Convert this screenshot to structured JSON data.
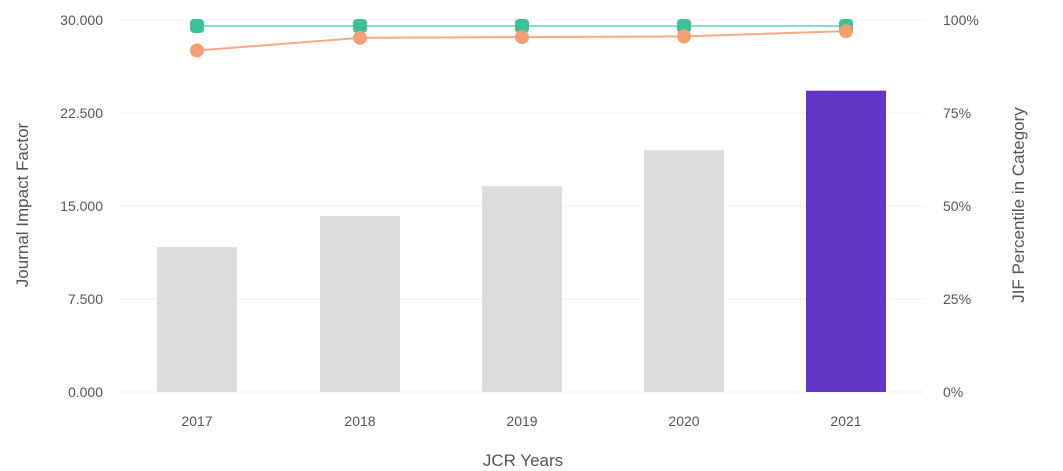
{
  "chart_data": {
    "type": "bar",
    "categories": [
      "2017",
      "2018",
      "2019",
      "2020",
      "2021"
    ],
    "xlabel": "JCR Years",
    "ylabel": "Journal Impact Factor",
    "ylabel_right": "JIF Percentile in Category",
    "ylim": [
      0,
      30
    ],
    "ylim_right": [
      0,
      100
    ],
    "yticks": [
      "0.000",
      "7.500",
      "15.000",
      "22.500",
      "30.000"
    ],
    "yticks_right": [
      "0%",
      "25%",
      "50%",
      "75%",
      "100%"
    ],
    "grid": true,
    "series": [
      {
        "kind": "bar",
        "axis": "left",
        "values": [
          11.7,
          14.2,
          16.6,
          19.5,
          24.3
        ],
        "colors": [
          "#dddddd",
          "#dddddd",
          "#dddddd",
          "#dddddd",
          "#6236c4"
        ]
      },
      {
        "kind": "line",
        "axis": "right",
        "values": [
          98.4,
          98.4,
          98.4,
          98.4,
          98.4
        ],
        "color": "#3cc295",
        "line_color": "#8fd8d8",
        "marker": "square"
      },
      {
        "kind": "line",
        "axis": "right",
        "values": [
          91.8,
          95.2,
          95.4,
          95.6,
          97.0
        ],
        "color": "#f49e74",
        "line_color": "#f6ab86",
        "marker": "circle"
      }
    ]
  }
}
